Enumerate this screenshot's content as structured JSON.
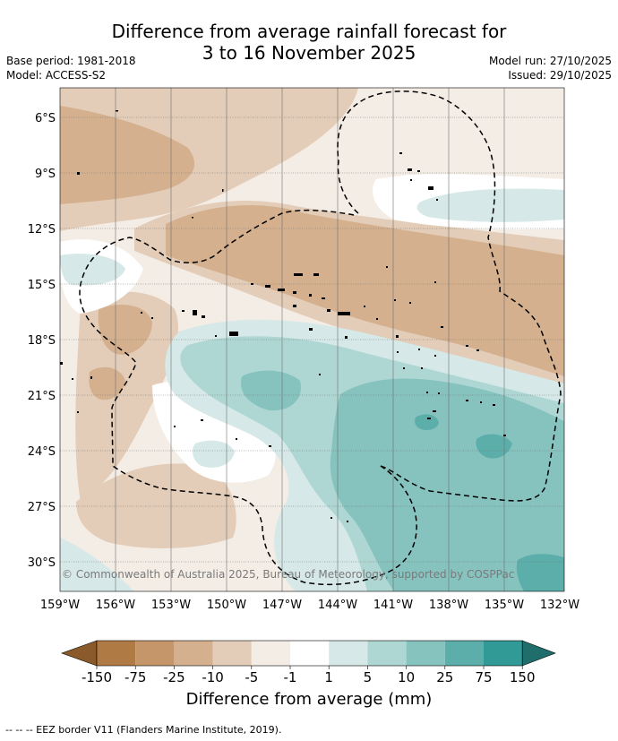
{
  "title": {
    "line1": "Difference from average rainfall forecast for",
    "line2": "3 to 16 November 2025"
  },
  "meta": {
    "base_period": "Base period: 1981-2018",
    "model": "Model: ACCESS-S2",
    "model_run": "Model run: 27/10/2025",
    "issued": "Issued: 29/10/2025"
  },
  "map": {
    "lat_labels": [
      "6°S",
      "9°S",
      "12°S",
      "15°S",
      "18°S",
      "21°S",
      "24°S",
      "27°S",
      "30°S"
    ],
    "lon_labels": [
      "159°W",
      "156°W",
      "153°W",
      "150°W",
      "147°W",
      "144°W",
      "141°W",
      "138°W",
      "135°W",
      "132°W"
    ],
    "credit": "© Commonwealth of Australia 2025, Bureau of Meteorology, supported by COSPPac"
  },
  "legend": {
    "title": "Difference from average (mm)",
    "tick_labels": [
      "-150",
      "-75",
      "-25",
      "-10",
      "-5",
      "-1",
      "1",
      "5",
      "10",
      "25",
      "75",
      "150"
    ],
    "colors": [
      "#8a5a2b",
      "#b07a44",
      "#c4966a",
      "#d4b08f",
      "#e3cdb8",
      "#f4ede6",
      "#ffffff",
      "#d6e9e8",
      "#aed7d4",
      "#86c2be",
      "#5caeaa",
      "#319a96",
      "#1f6e6b"
    ]
  },
  "footer": "--  --  -- EEZ border V11 (Flanders Marine Institute, 2019)."
}
